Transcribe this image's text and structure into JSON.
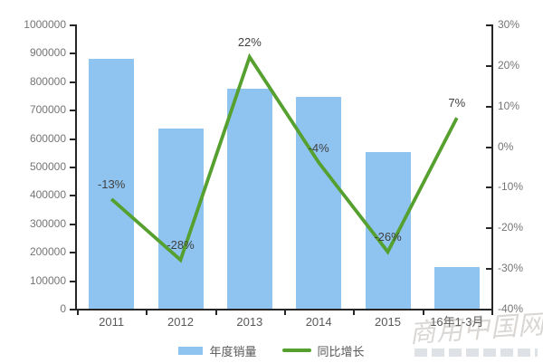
{
  "chart_data": {
    "type": "bar",
    "title": "",
    "categories": [
      "2011",
      "2012",
      "2013",
      "2014",
      "2015",
      "16年1-3月"
    ],
    "series": [
      {
        "name": "年度销量",
        "type": "bar",
        "axis": "left",
        "color": "#8EC4EF",
        "values": [
          880000,
          635000,
          775000,
          745000,
          550000,
          145000
        ]
      },
      {
        "name": "同比增长",
        "type": "line",
        "axis": "right",
        "color": "#56A02F",
        "values": [
          -13,
          -28,
          22,
          -4,
          -26,
          7
        ],
        "point_labels": [
          "-13%",
          "-28%",
          "22%",
          "-4%",
          "-26%",
          "7%"
        ]
      }
    ],
    "left_axis": {
      "min": 0,
      "max": 1000000,
      "step": 100000,
      "tick_labels": [
        "0",
        "100000",
        "200000",
        "300000",
        "400000",
        "500000",
        "600000",
        "700000",
        "800000",
        "900000",
        "1000000"
      ]
    },
    "right_axis": {
      "min": -40,
      "max": 30,
      "step": 10,
      "tick_labels": [
        "-40%",
        "-30%",
        "-20%",
        "-10%",
        "0%",
        "10%",
        "20%",
        "30%"
      ]
    },
    "legend": {
      "position": "bottom",
      "items": [
        "年度销量",
        "同比增长"
      ]
    },
    "grid": false
  },
  "watermark": {
    "text": "商用中国网"
  },
  "colors": {
    "bar": "#8EC4EF",
    "line": "#56A02F",
    "axis": "#262626",
    "tick_label": "#757575",
    "data_label": "#404040",
    "legend_label": "#595959",
    "background": "#FFFFFF"
  }
}
